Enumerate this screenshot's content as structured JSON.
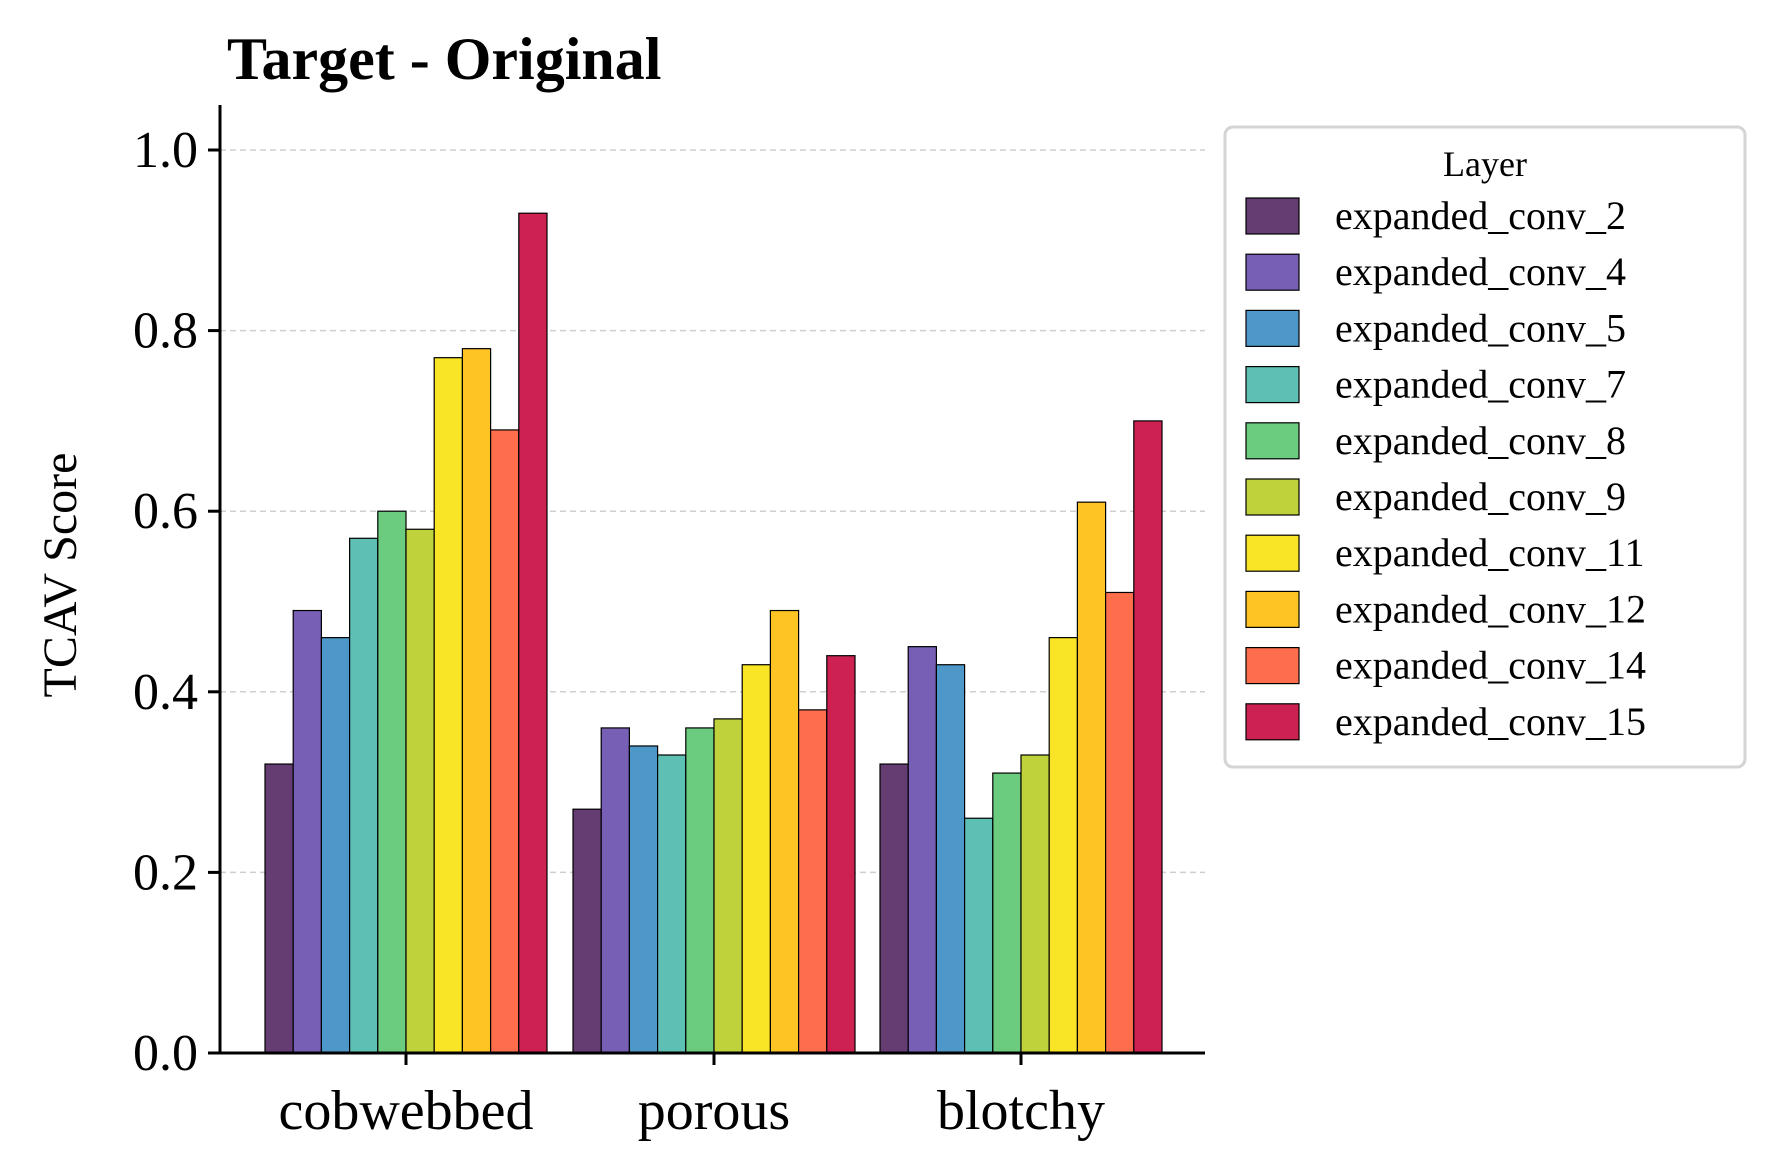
{
  "chart_data": {
    "type": "bar",
    "title": "Target - Original",
    "xlabel": "",
    "ylabel": "TCAV Score",
    "ylim": [
      0,
      1.05
    ],
    "yticks": [
      "0.0",
      "0.2",
      "0.4",
      "0.6",
      "0.8",
      "1.0"
    ],
    "ytick_values": [
      0,
      0.2,
      0.4,
      0.6,
      0.8,
      1.0
    ],
    "grid": "horizontal dashed",
    "categories": [
      "cobwebbed",
      "porous",
      "blotchy"
    ],
    "legend": {
      "title": "Layer",
      "placement": "outside right"
    },
    "series": [
      {
        "name": "expanded_conv_2",
        "color": "#663d73",
        "values": [
          0.32,
          0.27,
          0.32
        ]
      },
      {
        "name": "expanded_conv_4",
        "color": "#765fb4",
        "values": [
          0.49,
          0.36,
          0.45
        ]
      },
      {
        "name": "expanded_conv_5",
        "color": "#4e98c9",
        "values": [
          0.46,
          0.34,
          0.43
        ]
      },
      {
        "name": "expanded_conv_7",
        "color": "#5ebfb4",
        "values": [
          0.57,
          0.33,
          0.26
        ]
      },
      {
        "name": "expanded_conv_8",
        "color": "#6bcc7f",
        "values": [
          0.6,
          0.36,
          0.31
        ]
      },
      {
        "name": "expanded_conv_9",
        "color": "#bfd13b",
        "values": [
          0.58,
          0.37,
          0.33
        ]
      },
      {
        "name": "expanded_conv_11",
        "color": "#f9e525",
        "values": [
          0.77,
          0.43,
          0.46
        ]
      },
      {
        "name": "expanded_conv_12",
        "color": "#fdc424",
        "values": [
          0.78,
          0.49,
          0.61
        ]
      },
      {
        "name": "expanded_conv_14",
        "color": "#fe6e4d",
        "values": [
          0.69,
          0.38,
          0.51
        ]
      },
      {
        "name": "expanded_conv_15",
        "color": "#cd2152",
        "values": [
          0.93,
          0.44,
          0.7
        ]
      }
    ]
  }
}
